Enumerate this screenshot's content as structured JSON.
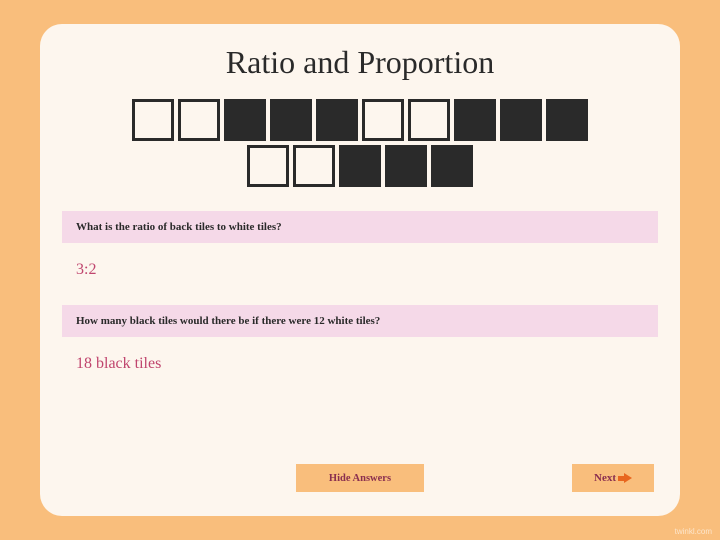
{
  "title": "Ratio and Proportion",
  "tiles": {
    "row1": [
      "white",
      "white",
      "black",
      "black",
      "black",
      "white",
      "white",
      "black",
      "black",
      "black"
    ],
    "row2": [
      "white",
      "white",
      "black",
      "black",
      "black"
    ],
    "colors": {
      "white": "#fdf6ee",
      "black": "#2a2a2a",
      "border": "#2a2a2a"
    },
    "tile_size": 42,
    "border_width": 3
  },
  "qa": [
    {
      "question": "What is the ratio of back tiles to white tiles?",
      "answer": "3:2"
    },
    {
      "question": "How many black tiles would there be if there were 12 white tiles?",
      "answer": "18 black tiles"
    }
  ],
  "buttons": {
    "hide": "Hide Answers",
    "next": "Next"
  },
  "colors": {
    "page_bg": "#f9be7c",
    "card_bg": "#fdf6ee",
    "question_bg": "#f5d9e8",
    "answer_color": "#c0456e",
    "button_bg": "#f9be7c",
    "button_text": "#8a2f4f",
    "arrow": "#e8661f"
  },
  "watermark": "twinkl.com"
}
